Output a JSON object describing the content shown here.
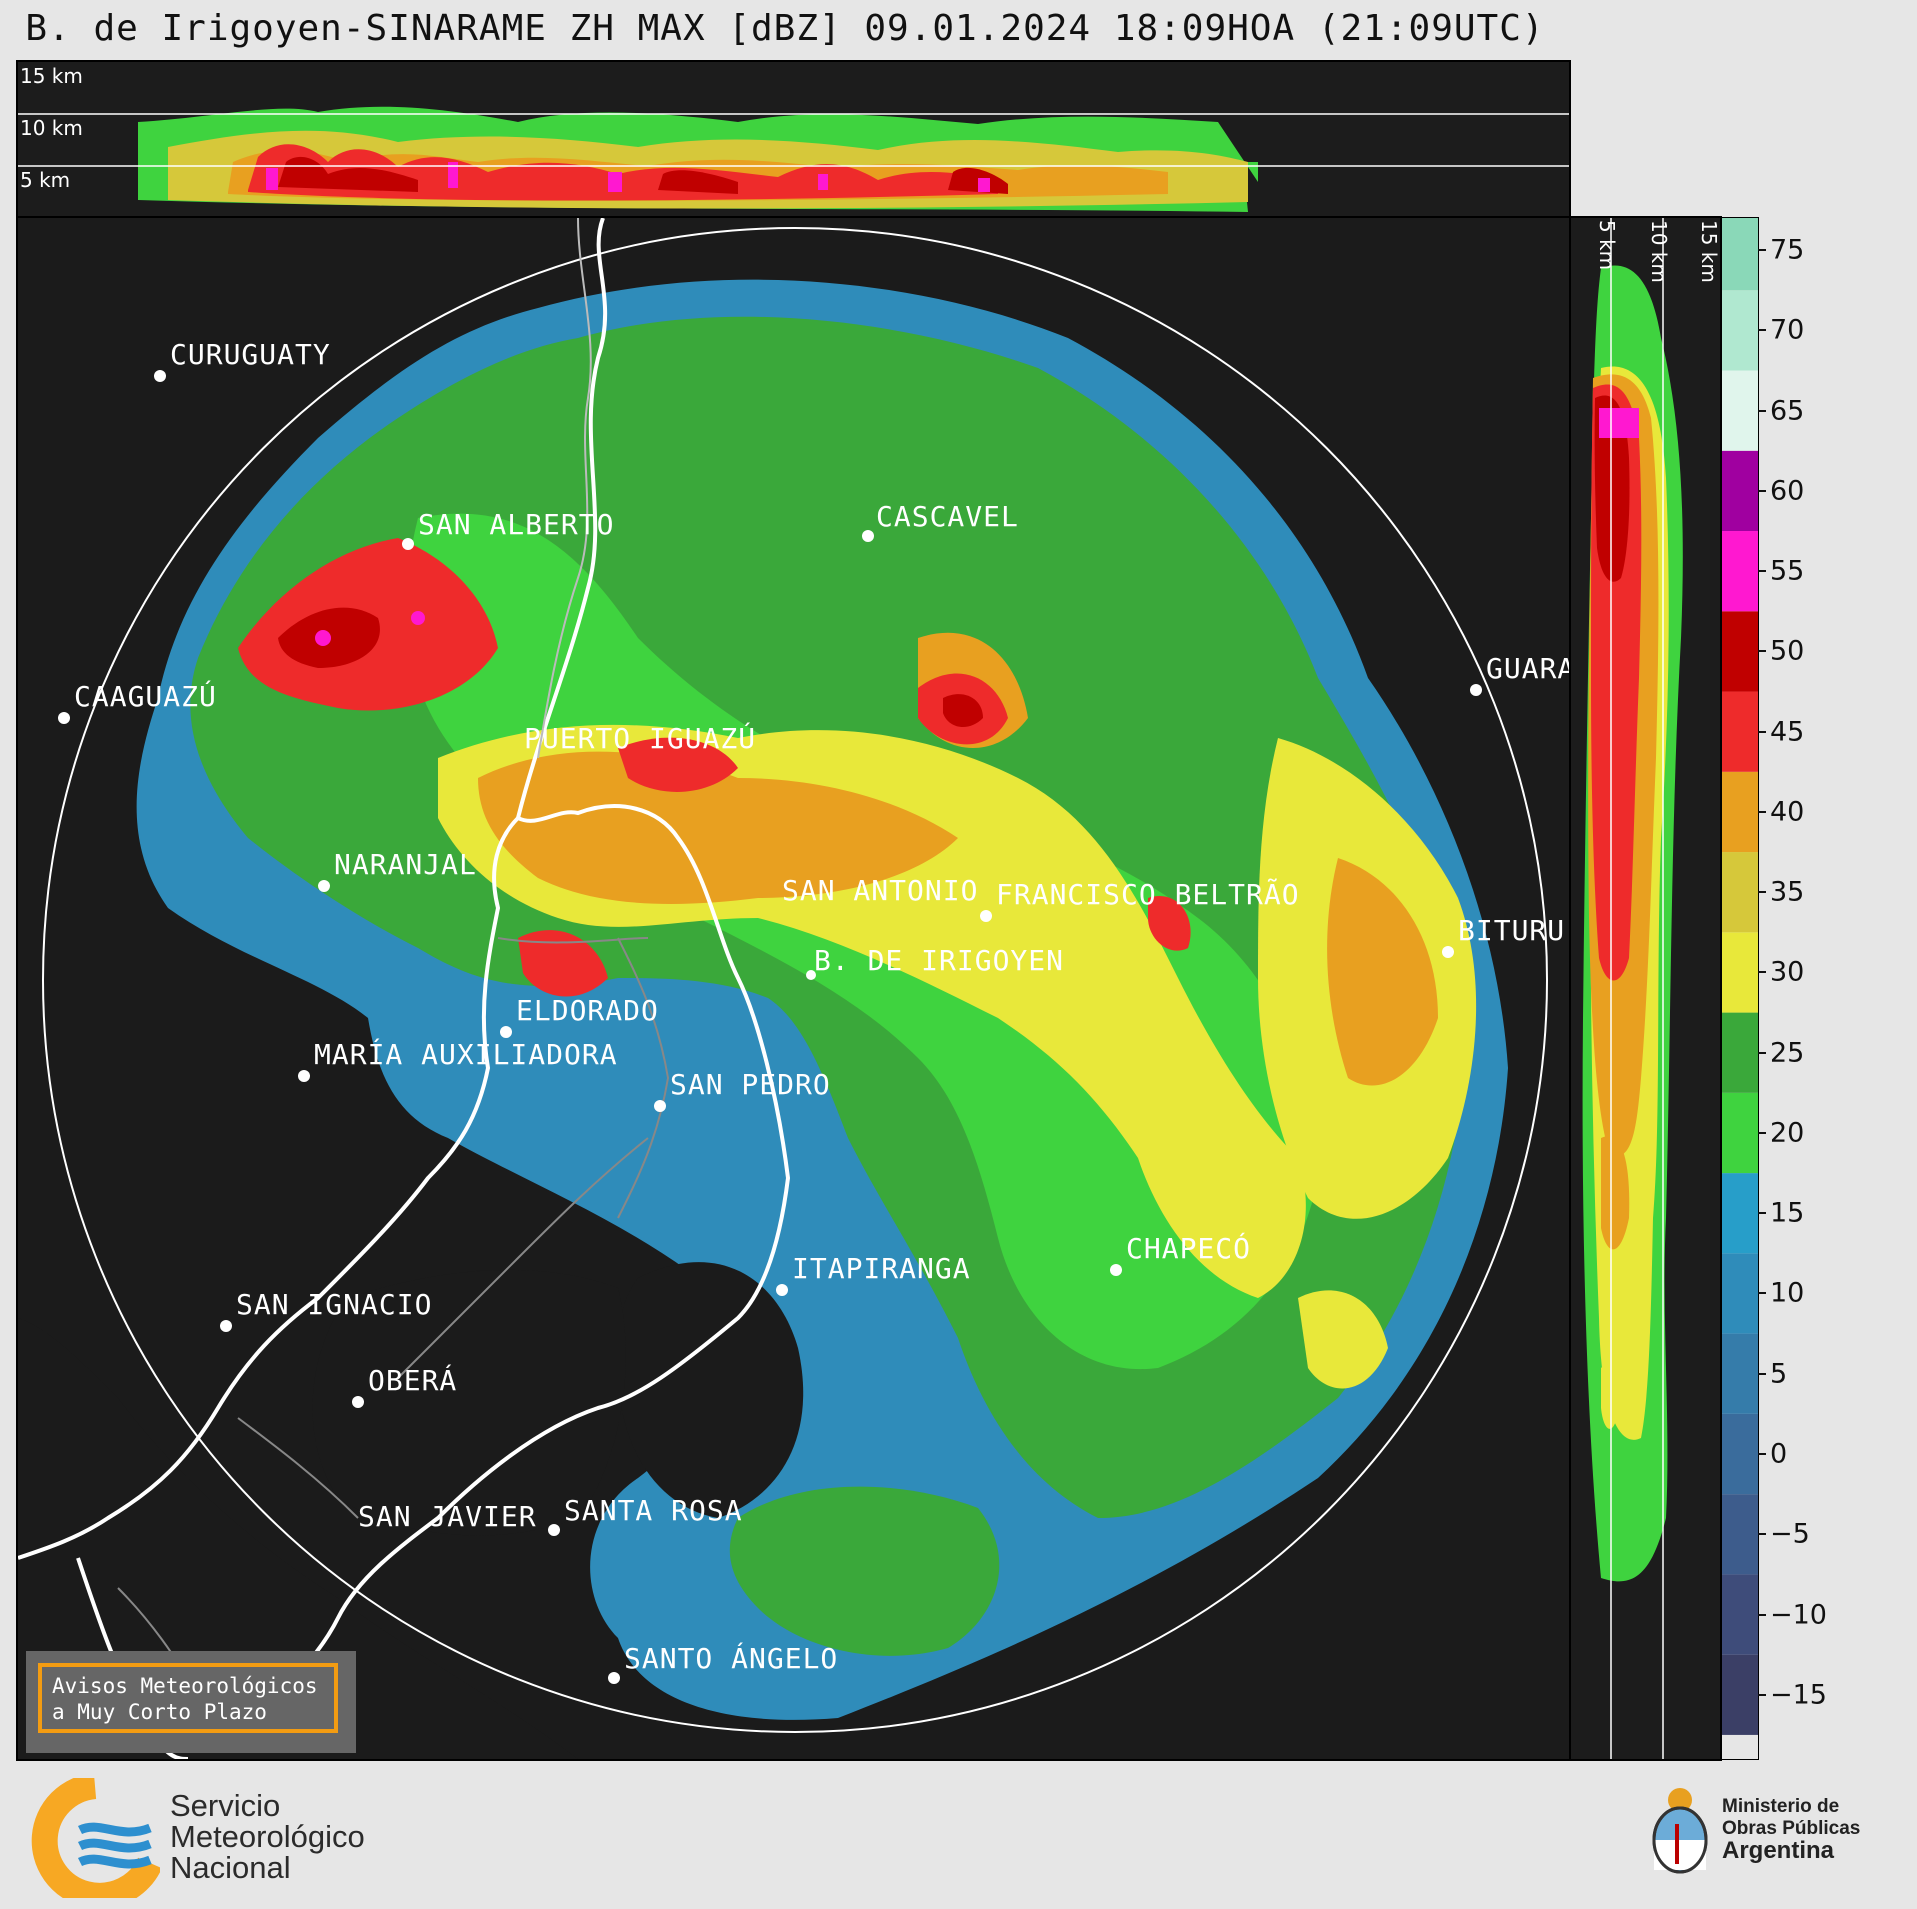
{
  "title": "B. de Irigoyen-SINARAME ZH MAX [dBZ] 09.01.2024 18:09HOA (21:09UTC)",
  "top_panel": {
    "altitude_labels": [
      "15 km",
      "10 km",
      "5 km"
    ]
  },
  "side_panel": {
    "altitude_labels": [
      "5 km",
      "10 km",
      "15 km"
    ]
  },
  "colorbar": {
    "unit": "dBZ",
    "ticks": [
      "75",
      "70",
      "65",
      "60",
      "55",
      "50",
      "45",
      "40",
      "35",
      "30",
      "25",
      "20",
      "15",
      "10",
      "5",
      "0",
      "−5",
      "−10",
      "−15"
    ],
    "min": -19,
    "max": 77,
    "colors": {
      "-15": "#3b3f66",
      "-10": "#3e4c7a",
      "-5": "#3d5c8c",
      "0": "#3a6c9c",
      "5": "#357caa",
      "10": "#2f8cba",
      "15": "#279ec9",
      "20": "#3fd33f",
      "25": "#3aa83a",
      "30": "#e8e83a",
      "35": "#d6c83a",
      "40": "#e8a020",
      "45": "#ee2b2b",
      "50": "#c00000",
      "55": "#ff18d0",
      "60": "#a000a0",
      "65": "#e0f5ec",
      "70": "#b0e8d0",
      "75": "#8ad8b8"
    }
  },
  "cities": [
    {
      "name": "CURUGUATY"
    },
    {
      "name": "SAN ALBERTO"
    },
    {
      "name": "CASCAVEL"
    },
    {
      "name": "CAAGUAZÚ"
    },
    {
      "name": "GUARA"
    },
    {
      "name": "PUERTO IGUAZÚ"
    },
    {
      "name": "NARANJAL"
    },
    {
      "name": "SAN ANTONIO"
    },
    {
      "name": "FRANCISCO BELTRÃO"
    },
    {
      "name": "BITURU"
    },
    {
      "name": "B. DE IRIGOYEN"
    },
    {
      "name": "ELDORADO"
    },
    {
      "name": "MARÍA AUXILIADORA"
    },
    {
      "name": "SAN PEDRO"
    },
    {
      "name": "CHAPECÓ"
    },
    {
      "name": "ITAPIRANGA"
    },
    {
      "name": "SAN IGNACIO"
    },
    {
      "name": "OBERÁ"
    },
    {
      "name": "SAN JAVIER"
    },
    {
      "name": "SANTA ROSA"
    },
    {
      "name": "SANTO ÁNGELO"
    }
  ],
  "aviso": {
    "line1": "Avisos Meteorológicos",
    "line2": "a Muy Corto Plazo"
  },
  "smn": {
    "line1": "Servicio",
    "line2": "Meteorológico",
    "line3": "Nacional"
  },
  "ministerio": {
    "line1": "Ministerio de",
    "line2": "Obras Públicas",
    "line3": "Argentina"
  }
}
